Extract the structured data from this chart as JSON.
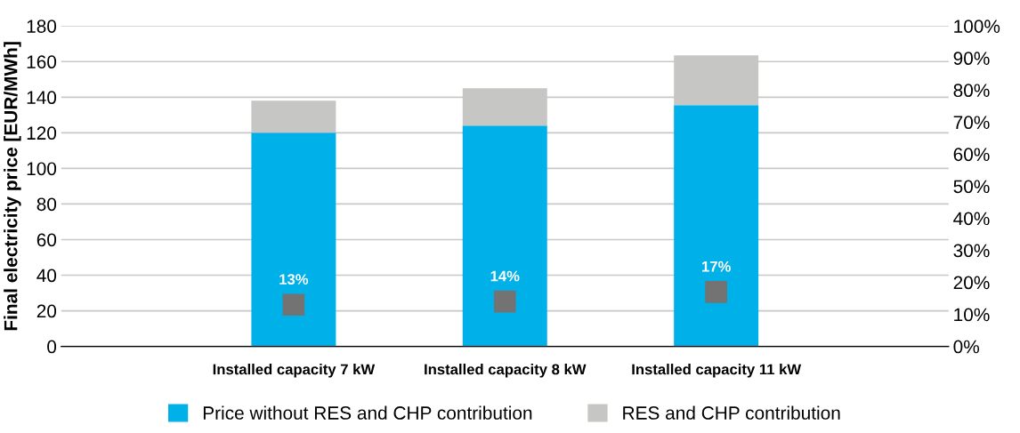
{
  "chart_data": {
    "type": "bar",
    "stacked": true,
    "ylabel": "Final electricity price [EUR/MWh]",
    "categories": [
      "Installed capacity 7 kW",
      "Installed capacity 8 kW",
      "Installed capacity 11 kW"
    ],
    "series": [
      {
        "name": "Price without RES and CHP contribution",
        "color": "#00b0e8",
        "values": [
          120,
          124,
          135.5
        ]
      },
      {
        "name": "RES and CHP contribution",
        "color": "#c6c6c4",
        "values": [
          18,
          21,
          28
        ]
      },
      {
        "type": "scatter",
        "axis": "y2",
        "color": "#737373",
        "values": [
          13,
          14,
          17
        ],
        "value_labels": [
          "13%",
          "14%",
          "17%"
        ],
        "marker": "square"
      }
    ],
    "ylim": [
      0,
      180
    ],
    "yticks": [
      0,
      20,
      40,
      60,
      80,
      100,
      120,
      140,
      160,
      180
    ],
    "y2lim": [
      0,
      100
    ],
    "y2ticks": [
      {
        "value": 0,
        "label": "0%"
      },
      {
        "value": 10,
        "label": "10%"
      },
      {
        "value": 20,
        "label": "20%"
      },
      {
        "value": 30,
        "label": "30%"
      },
      {
        "value": 40,
        "label": "40%"
      },
      {
        "value": 50,
        "label": "50%"
      },
      {
        "value": 60,
        "label": "60%"
      },
      {
        "value": 70,
        "label": "70%"
      },
      {
        "value": 80,
        "label": "80%"
      },
      {
        "value": 90,
        "label": "90%"
      },
      {
        "value": 100,
        "label": "100%"
      }
    ],
    "grid": "y",
    "legend": "bottom"
  }
}
